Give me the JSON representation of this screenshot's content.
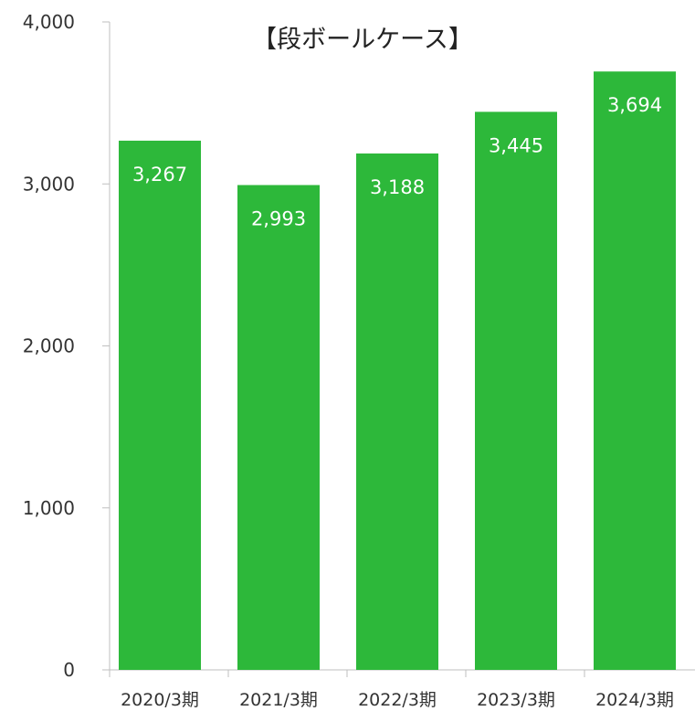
{
  "chart_data": {
    "type": "bar",
    "title": "【段ボールケース】",
    "xlabel": "",
    "ylabel": "",
    "categories": [
      "2020/3期",
      "2021/3期",
      "2022/3期",
      "2023/3期",
      "2024/3期"
    ],
    "series": [
      {
        "values": [
          3267,
          2993,
          3188,
          3445,
          3694
        ]
      }
    ],
    "data_labels": [
      "3,267",
      "2,993",
      "3,188",
      "3,445",
      "3,694"
    ],
    "ylim": [
      0,
      4000
    ],
    "yticks": [
      0,
      1000,
      2000,
      3000,
      4000
    ],
    "ytick_labels": [
      "0",
      "1,000",
      "2,000",
      "3,000",
      "4,000"
    ],
    "grid": false,
    "legend": "none",
    "colors": {
      "bar": "#2db83a",
      "axis": "#bfbfbf",
      "data_label": "#ffffff"
    }
  }
}
